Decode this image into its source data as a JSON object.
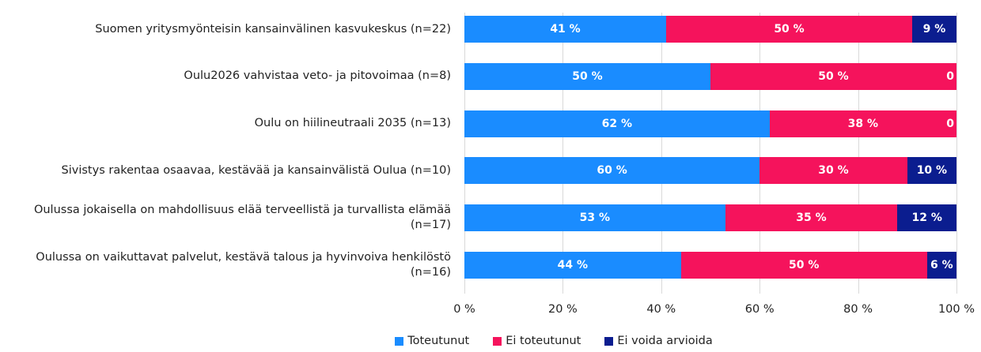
{
  "chart_data": {
    "type": "stacked-bar-horizontal",
    "categories": [
      "Suomen yritysmyönteisin kansainvälinen kasvukeskus (n=22)",
      "Oulu2026 vahvistaa veto- ja pitovoimaa (n=8)",
      "Oulu on hiilineutraali 2035 (n=13)",
      "Sivistys rakentaa osaavaa, kestävää ja kansainvälistä Oulua (n=10)",
      "Oulussa jokaisella on mahdollisuus elää terveellistä ja turvallista elämää (n=17)",
      "Oulussa on vaikuttavat palvelut, kestävä talous ja hyvinvoiva henkilöstö (n=16)"
    ],
    "series": [
      {
        "name": "Toteutunut",
        "color": "#1a8cff",
        "values": [
          41,
          50,
          62,
          60,
          53,
          44
        ],
        "value_labels": [
          "41 %",
          "50 %",
          "62 %",
          "60 %",
          "53 %",
          "44 %"
        ]
      },
      {
        "name": "Ei toteutunut",
        "color": "#f5135c",
        "values": [
          50,
          50,
          38,
          30,
          35,
          50
        ],
        "value_labels": [
          "50 %",
          "50 %",
          "38 %",
          "30 %",
          "35 %",
          "50 %"
        ]
      },
      {
        "name": "Ei voida arvioida",
        "color": "#0b1d8f",
        "values": [
          9,
          0,
          0,
          10,
          12,
          6
        ],
        "value_labels": [
          "9 %",
          "0",
          "0",
          "10 %",
          "12 %",
          "6 %"
        ]
      }
    ],
    "xlim": [
      0,
      100
    ],
    "xticks": [
      {
        "value": 0,
        "label": "0 %"
      },
      {
        "value": 20,
        "label": "20 %"
      },
      {
        "value": 40,
        "label": "40 %"
      },
      {
        "value": 60,
        "label": "60 %"
      },
      {
        "value": 80,
        "label": "80 %"
      },
      {
        "value": 100,
        "label": "100 %"
      }
    ],
    "grid": true,
    "legend": "bottom"
  }
}
